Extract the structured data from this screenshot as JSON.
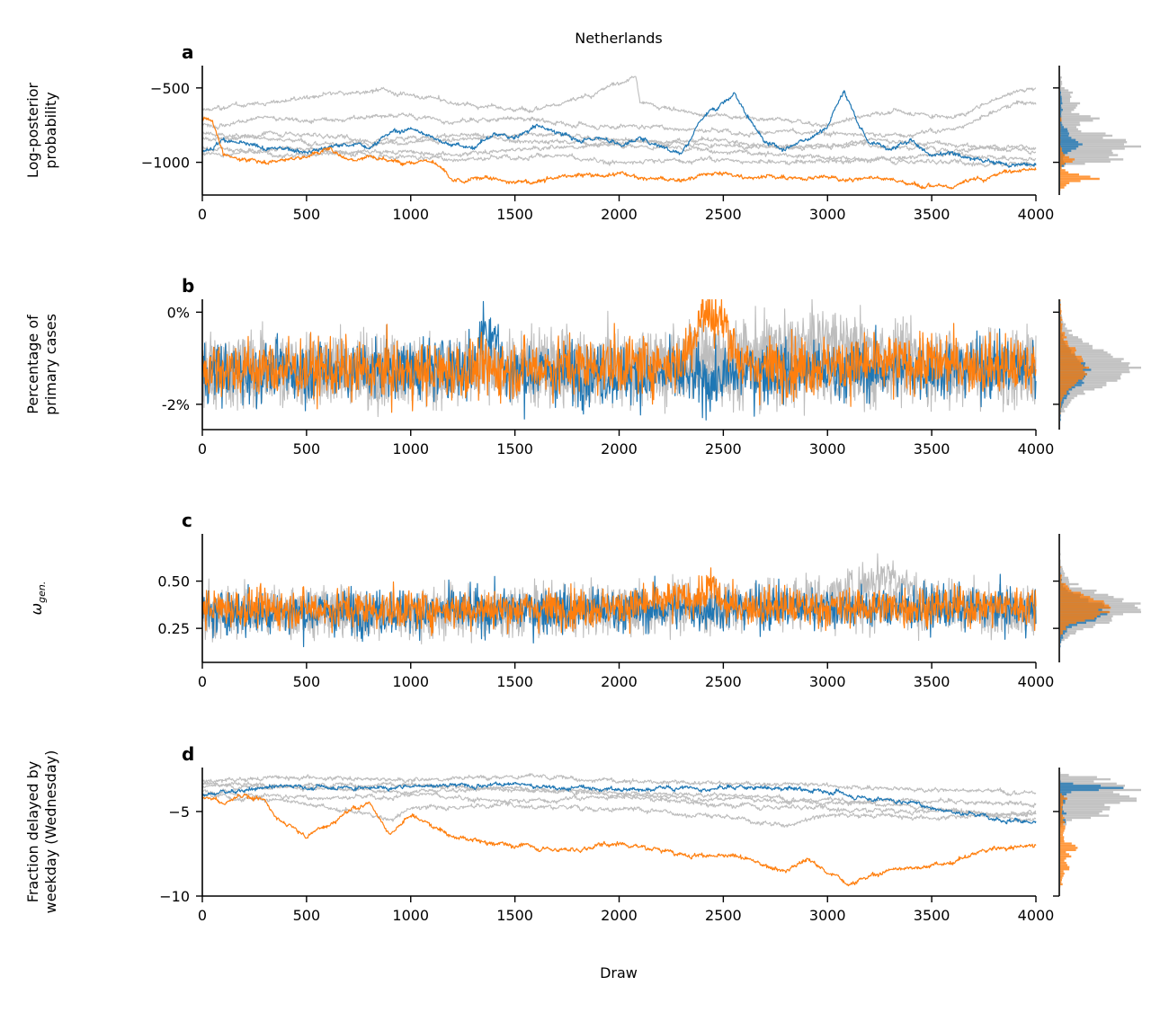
{
  "figure": {
    "title": "Netherlands",
    "xlabel": "Draw"
  },
  "colors": {
    "blue": "#1f77b4",
    "orange": "#ff7f0e",
    "gray": "#bdbdbd",
    "axis": "#000000"
  },
  "chart_data": [
    {
      "type": "line",
      "panel_letter": "a",
      "ylabel": "Log-posterior probability",
      "xlabel": "",
      "xlim": [
        0,
        4000
      ],
      "xticks": [
        "0",
        "500",
        "1000",
        "1500",
        "2000",
        "2500",
        "3000",
        "3500",
        "4000"
      ],
      "ylim": [
        -1220,
        -350
      ],
      "yticks": [
        {
          "value": -500,
          "label": "−500"
        },
        {
          "value": -1000,
          "label": "−1000"
        }
      ],
      "grid": false,
      "has_marginal_histogram": true,
      "series": [
        {
          "color": "blue",
          "x": [
            0,
            100,
            200,
            300,
            400,
            500,
            600,
            700,
            800,
            900,
            1000,
            1100,
            1200,
            1300,
            1400,
            1500,
            1600,
            1700,
            1800,
            1900,
            2000,
            2100,
            2200,
            2300,
            2400,
            2500,
            2550,
            2600,
            2700,
            2800,
            2900,
            3000,
            3080,
            3150,
            3200,
            3300,
            3400,
            3500,
            3600,
            3700,
            3800,
            3900,
            4000
          ],
          "y": [
            -930,
            -850,
            -880,
            -920,
            -900,
            -930,
            -900,
            -880,
            -890,
            -800,
            -780,
            -830,
            -880,
            -900,
            -820,
            -840,
            -750,
            -800,
            -850,
            -830,
            -880,
            -850,
            -880,
            -940,
            -700,
            -600,
            -530,
            -650,
            -880,
            -920,
            -850,
            -750,
            -520,
            -750,
            -870,
            -900,
            -850,
            -950,
            -940,
            -980,
            -1000,
            -1030,
            -1020
          ]
        },
        {
          "color": "orange",
          "x": [
            0,
            50,
            100,
            200,
            300,
            400,
            500,
            600,
            700,
            800,
            900,
            1000,
            1100,
            1150,
            1200,
            1300,
            1400,
            1500,
            1600,
            1700,
            1800,
            1900,
            2000,
            2100,
            2200,
            2300,
            2400,
            2500,
            2600,
            2700,
            2800,
            2900,
            3000,
            3100,
            3200,
            3300,
            3400,
            3500,
            3600,
            3700,
            3800,
            3900,
            4000
          ],
          "y": [
            -700,
            -720,
            -950,
            -980,
            -1000,
            -980,
            -960,
            -900,
            -980,
            -960,
            -990,
            -1000,
            -980,
            -1050,
            -1130,
            -1120,
            -1100,
            -1140,
            -1130,
            -1100,
            -1080,
            -1090,
            -1070,
            -1100,
            -1110,
            -1120,
            -1090,
            -1080,
            -1110,
            -1090,
            -1100,
            -1110,
            -1090,
            -1120,
            -1100,
            -1110,
            -1150,
            -1140,
            -1160,
            -1120,
            -1090,
            -1050,
            -1050
          ]
        },
        {
          "color": "gray",
          "x": [
            0,
            300,
            600,
            900,
            1200,
            1500,
            1800,
            2080,
            2100,
            2400,
            2700,
            3000,
            3300,
            3600,
            3900,
            4000
          ],
          "y": [
            -650,
            -600,
            -550,
            -520,
            -600,
            -650,
            -580,
            -420,
            -600,
            -680,
            -700,
            -750,
            -650,
            -700,
            -520,
            -500
          ]
        },
        {
          "color": "gray",
          "x": [
            0,
            300,
            600,
            900,
            1200,
            1500,
            1800,
            2100,
            2400,
            2700,
            3000,
            3300,
            3600,
            3900,
            4000
          ],
          "y": [
            -750,
            -700,
            -720,
            -680,
            -720,
            -700,
            -750,
            -760,
            -780,
            -800,
            -800,
            -820,
            -780,
            -600,
            -600
          ]
        },
        {
          "color": "gray",
          "x": [
            0,
            400,
            800,
            1200,
            1600,
            2000,
            2400,
            2800,
            3200,
            3600,
            4000
          ],
          "y": [
            -850,
            -800,
            -850,
            -820,
            -860,
            -870,
            -850,
            -900,
            -880,
            -920,
            -900
          ]
        },
        {
          "color": "gray",
          "x": [
            0,
            400,
            800,
            1200,
            1600,
            2000,
            2400,
            2800,
            3200,
            3600,
            4000
          ],
          "y": [
            -900,
            -950,
            -930,
            -950,
            -900,
            -880,
            -920,
            -950,
            -980,
            -950,
            -980
          ]
        },
        {
          "color": "gray",
          "x": [
            0,
            400,
            800,
            1200,
            1600,
            2000,
            2400,
            2800,
            3200,
            3600,
            4000
          ],
          "y": [
            -800,
            -850,
            -880,
            -850,
            -800,
            -850,
            -880,
            -900,
            -850,
            -880,
            -930
          ]
        },
        {
          "color": "gray",
          "x": [
            0,
            400,
            800,
            1200,
            1600,
            2000,
            2400,
            2800,
            3200,
            3600,
            4000
          ],
          "y": [
            -950,
            -900,
            -950,
            -980,
            -950,
            -1000,
            -980,
            -1000,
            -980,
            -1000,
            -1010
          ]
        }
      ]
    },
    {
      "type": "line",
      "panel_letter": "b",
      "ylabel": "Percentage of primary cases",
      "xlabel": "",
      "xlim": [
        0,
        4000
      ],
      "xticks": [
        "0",
        "500",
        "1000",
        "1500",
        "2000",
        "2500",
        "3000",
        "3500",
        "4000"
      ],
      "ylim": [
        -2.55,
        0.28
      ],
      "yticks": [
        {
          "value": 0,
          "label": "0%"
        },
        {
          "value": -2,
          "label": "-2%"
        }
      ],
      "grid": false,
      "has_marginal_histogram": true,
      "series": [
        {
          "color": "gray",
          "x": [
            0,
            1000,
            2000,
            3000,
            3500,
            4000
          ],
          "y": [
            -1.3,
            -1.2,
            -1.1,
            -1.0,
            -1.2,
            -1.3
          ],
          "noise": 1.1
        },
        {
          "color": "gray",
          "x": [
            0,
            1000,
            2000,
            3000,
            3500,
            4000
          ],
          "y": [
            -1.1,
            -1.3,
            -1.2,
            -0.6,
            -1.0,
            -1.1
          ],
          "noise": 1.1
        },
        {
          "color": "gray",
          "x": [
            0,
            1000,
            2000,
            3000,
            4000
          ],
          "y": [
            -1.4,
            -1.3,
            -1.3,
            -1.4,
            -1.2
          ],
          "noise": 1.1
        },
        {
          "color": "blue",
          "x": [
            0,
            1300,
            1350,
            1400,
            1450,
            2300,
            2450,
            2600,
            4000
          ],
          "y": [
            -1.3,
            -1.2,
            -0.3,
            -0.4,
            -1.3,
            -1.4,
            -1.5,
            -1.3,
            -1.2
          ],
          "noise": 1.0
        },
        {
          "color": "orange",
          "x": [
            0,
            1000,
            2300,
            2400,
            2500,
            2600,
            3500,
            4000
          ],
          "y": [
            -1.2,
            -1.3,
            -1.1,
            0.0,
            -0.2,
            -1.2,
            -1.1,
            -1.2
          ],
          "noise": 1.0
        }
      ]
    },
    {
      "type": "line",
      "panel_letter": "c",
      "ylabel": "ω_gen.",
      "xlabel": "",
      "xlim": [
        0,
        4000
      ],
      "xticks": [
        "0",
        "500",
        "1000",
        "1500",
        "2000",
        "2500",
        "3000",
        "3500",
        "4000"
      ],
      "ylim": [
        0.07,
        0.75
      ],
      "yticks": [
        {
          "value": 0.5,
          "label": "0.50"
        },
        {
          "value": 0.25,
          "label": "0.25"
        }
      ],
      "grid": false,
      "has_marginal_histogram": true,
      "series": [
        {
          "color": "gray",
          "x": [
            0,
            1000,
            2000,
            3000,
            3300,
            3500,
            4000
          ],
          "y": [
            0.33,
            0.33,
            0.35,
            0.4,
            0.55,
            0.38,
            0.35
          ],
          "noise": 0.2
        },
        {
          "color": "gray",
          "x": [
            0,
            1000,
            2000,
            3000,
            4000
          ],
          "y": [
            0.35,
            0.34,
            0.36,
            0.37,
            0.35
          ],
          "noise": 0.2
        },
        {
          "color": "blue",
          "x": [
            0,
            1000,
            2000,
            3000,
            4000
          ],
          "y": [
            0.33,
            0.34,
            0.35,
            0.36,
            0.35
          ],
          "noise": 0.18
        },
        {
          "color": "orange",
          "x": [
            0,
            1000,
            2000,
            2400,
            2450,
            2500,
            3000,
            4000
          ],
          "y": [
            0.36,
            0.35,
            0.36,
            0.42,
            0.48,
            0.37,
            0.36,
            0.37
          ],
          "noise": 0.16
        }
      ]
    },
    {
      "type": "line",
      "panel_letter": "d",
      "ylabel": "Fraction delayed by weekday (Wednesday)",
      "xlabel": "Draw",
      "xlim": [
        0,
        4000
      ],
      "xticks": [
        "0",
        "500",
        "1000",
        "1500",
        "2000",
        "2500",
        "3000",
        "3500",
        "4000"
      ],
      "ylim": [
        -10,
        -2.4
      ],
      "yticks": [
        {
          "value": -5,
          "label": "−5"
        },
        {
          "value": -10,
          "label": "−10"
        }
      ],
      "grid": false,
      "has_marginal_histogram": true,
      "series": [
        {
          "color": "gray",
          "x": [
            0,
            500,
            1000,
            1500,
            2000,
            2500,
            3000,
            3500,
            4000
          ],
          "y": [
            -3.2,
            -3.0,
            -3.1,
            -2.9,
            -3.2,
            -3.3,
            -3.5,
            -3.7,
            -3.8
          ]
        },
        {
          "color": "gray",
          "x": [
            0,
            500,
            1000,
            1500,
            2000,
            2500,
            3000,
            3500,
            4000
          ],
          "y": [
            -3.5,
            -3.6,
            -3.8,
            -3.6,
            -4.0,
            -4.2,
            -4.5,
            -4.3,
            -4.6
          ]
        },
        {
          "color": "gray",
          "x": [
            0,
            500,
            1000,
            1500,
            2000,
            2500,
            3000,
            3500,
            4000
          ],
          "y": [
            -3.8,
            -4.2,
            -4.0,
            -4.4,
            -4.1,
            -4.6,
            -4.8,
            -5.0,
            -5.2
          ]
        },
        {
          "color": "gray",
          "x": [
            0,
            500,
            900,
            1000,
            1500,
            2000,
            2500,
            2800,
            3000,
            3500,
            4000
          ],
          "y": [
            -4.0,
            -4.5,
            -5.5,
            -4.8,
            -4.6,
            -4.9,
            -5.3,
            -5.8,
            -5.2,
            -5.4,
            -5.0
          ]
        },
        {
          "color": "gray",
          "x": [
            0,
            500,
            1000,
            1500,
            2000,
            2500,
            3000,
            3500,
            4000
          ],
          "y": [
            -3.3,
            -3.5,
            -3.4,
            -3.7,
            -3.9,
            -4.0,
            -4.3,
            -4.8,
            -5.5
          ]
        },
        {
          "color": "blue",
          "x": [
            0,
            200,
            400,
            800,
            1200,
            1400,
            1600,
            2000,
            2400,
            2600,
            3000,
            3200,
            3400,
            3600,
            3800,
            4000
          ],
          "y": [
            -4.0,
            -3.7,
            -3.5,
            -3.6,
            -3.4,
            -3.3,
            -3.5,
            -3.7,
            -3.6,
            -3.5,
            -3.8,
            -4.2,
            -4.5,
            -5.0,
            -5.3,
            -5.7
          ]
        },
        {
          "color": "orange",
          "x": [
            0,
            100,
            200,
            300,
            350,
            500,
            700,
            800,
            900,
            1000,
            1100,
            1200,
            1500,
            1800,
            2000,
            2300,
            2600,
            2800,
            2900,
            3000,
            3100,
            3300,
            3600,
            3800,
            4000
          ],
          "y": [
            -4.2,
            -4.5,
            -4.0,
            -4.3,
            -5.3,
            -6.5,
            -5.0,
            -4.5,
            -6.3,
            -5.2,
            -5.8,
            -6.5,
            -7.0,
            -7.3,
            -6.8,
            -7.5,
            -7.8,
            -8.5,
            -7.8,
            -8.6,
            -9.2,
            -8.5,
            -8.0,
            -7.2,
            -7.0
          ]
        }
      ]
    }
  ]
}
